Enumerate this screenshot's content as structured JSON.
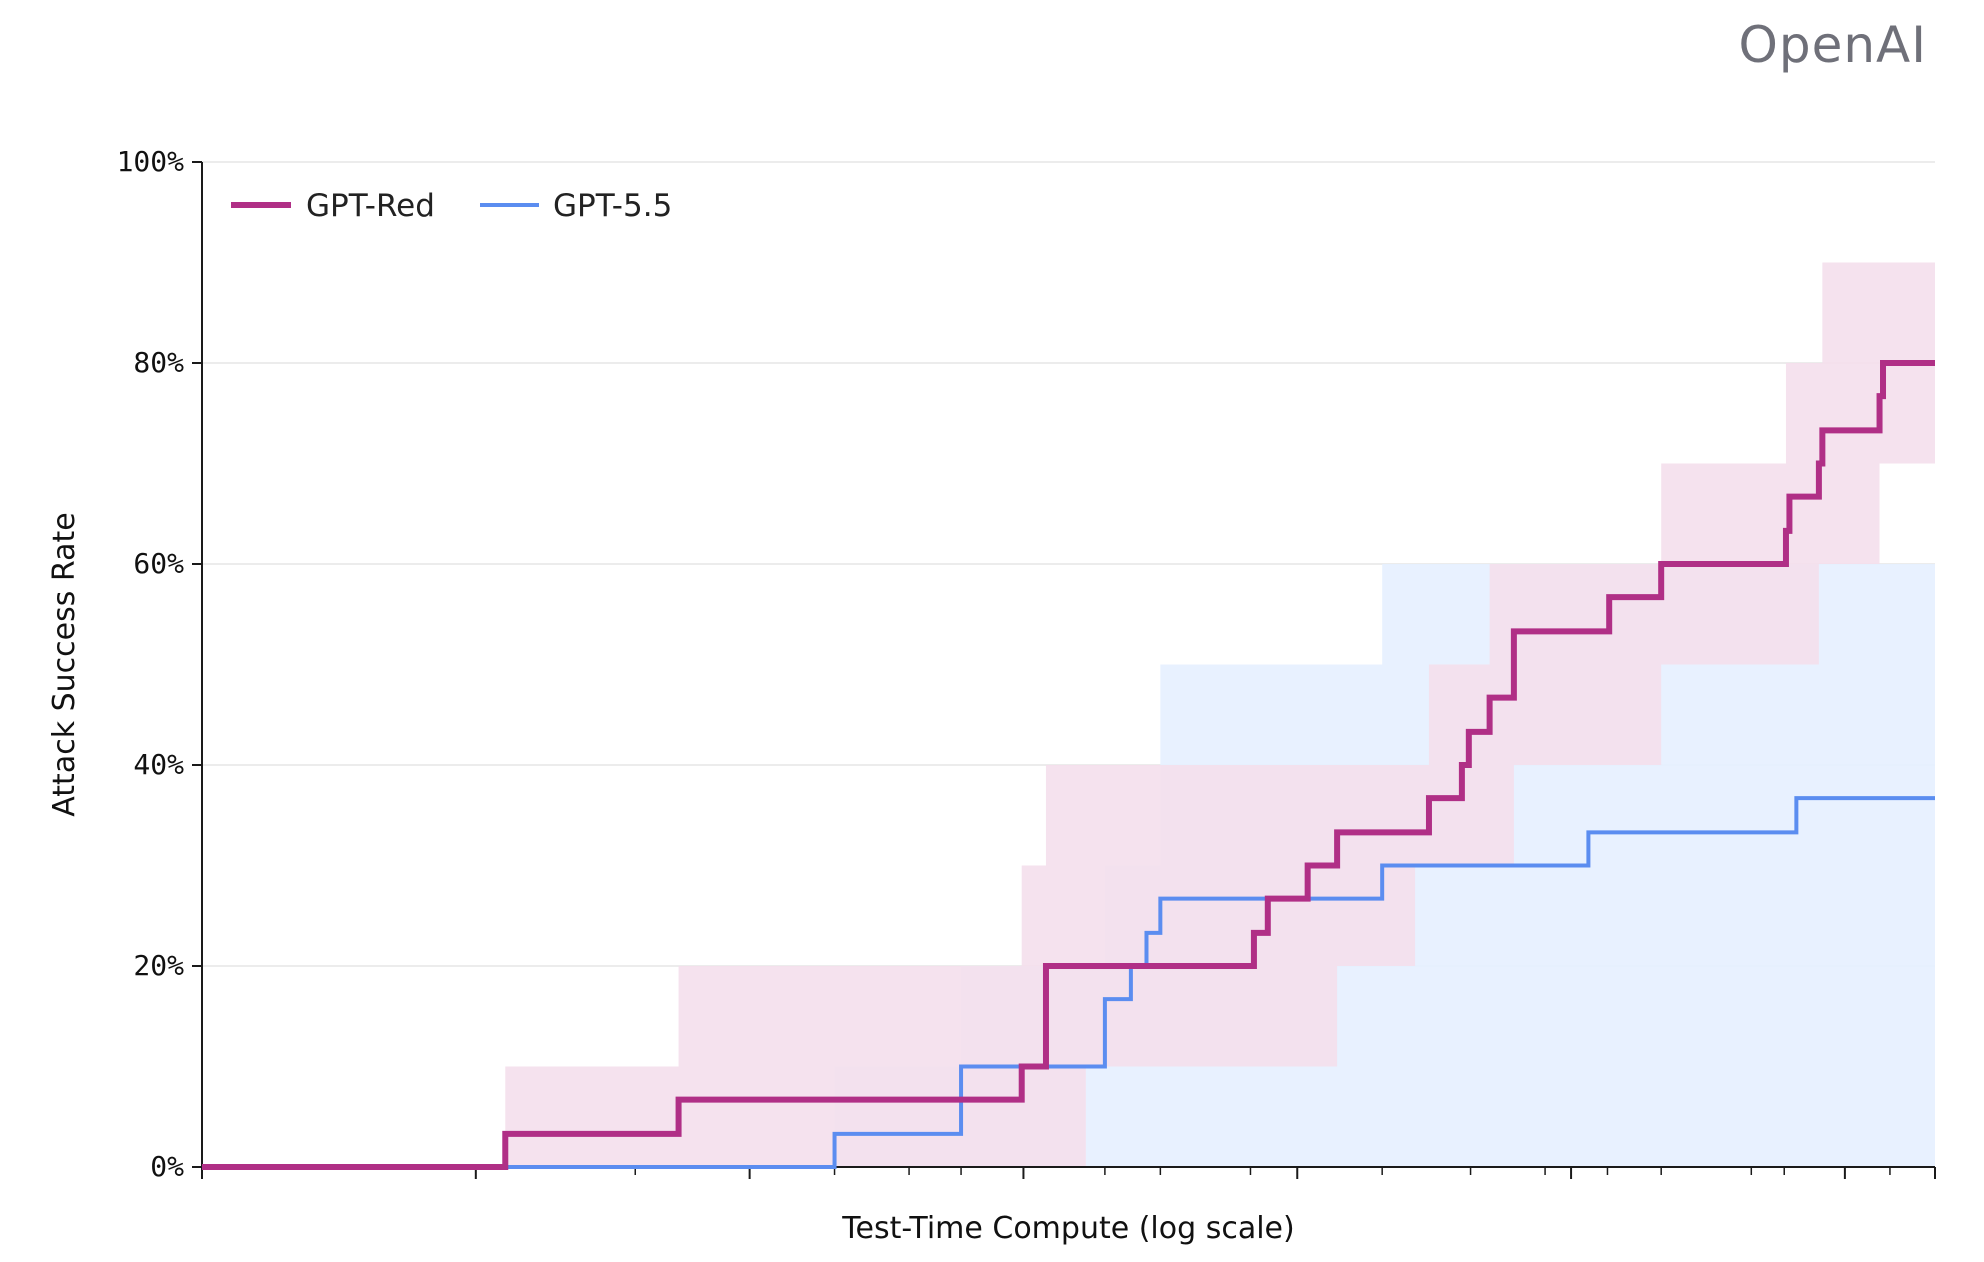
{
  "brand": {
    "name": "OpenAI"
  },
  "chart_data": {
    "type": "line",
    "title": "",
    "xlabel": "Test-Time Compute (log scale)",
    "ylabel": "Attack Success Rate",
    "xscale": "log",
    "xlim": [
      0,
      1
    ],
    "ylim": [
      0,
      100
    ],
    "yticks": [
      "0%",
      "20%",
      "40%",
      "60%",
      "80%",
      "100%"
    ],
    "xticks_labeled": false,
    "grid": "horizontal",
    "legend": {
      "position": "top-left",
      "entries": [
        "GPT-Red",
        "GPT-5.5"
      ]
    },
    "series": [
      {
        "name": "GPT-Red",
        "color": "#b02f86",
        "band_color": "#f4dfec",
        "line_width": 6,
        "points": [
          [
            0.0,
            0.0
          ],
          [
            0.175,
            3.3
          ],
          [
            0.275,
            6.7
          ],
          [
            0.473,
            10.0
          ],
          [
            0.487,
            20.0
          ],
          [
            0.607,
            23.3
          ],
          [
            0.615,
            26.7
          ],
          [
            0.638,
            30.0
          ],
          [
            0.655,
            33.3
          ],
          [
            0.708,
            36.7
          ],
          [
            0.727,
            40.0
          ],
          [
            0.731,
            43.3
          ],
          [
            0.743,
            46.7
          ],
          [
            0.757,
            53.3
          ],
          [
            0.812,
            56.7
          ],
          [
            0.842,
            60.0
          ],
          [
            0.914,
            63.3
          ],
          [
            0.916,
            66.7
          ],
          [
            0.933,
            70.0
          ],
          [
            0.935,
            73.3
          ],
          [
            0.968,
            76.7
          ],
          [
            0.97,
            80.0
          ],
          [
            1.0,
            80.0
          ]
        ],
        "ci": [
          [
            0.0,
            0,
            0
          ],
          [
            0.175,
            0,
            10
          ],
          [
            0.275,
            0,
            20
          ],
          [
            0.438,
            0,
            20
          ],
          [
            0.473,
            0,
            30
          ],
          [
            0.487,
            0,
            40
          ],
          [
            0.51,
            10,
            40
          ],
          [
            0.54,
            10,
            40
          ],
          [
            0.613,
            10,
            40
          ],
          [
            0.655,
            20,
            40
          ],
          [
            0.7,
            30,
            40
          ],
          [
            0.708,
            30,
            50
          ],
          [
            0.743,
            30,
            60
          ],
          [
            0.757,
            40,
            60
          ],
          [
            0.842,
            50,
            60
          ],
          [
            0.842,
            50,
            70
          ],
          [
            0.914,
            50,
            80
          ],
          [
            0.933,
            60,
            80
          ],
          [
            0.935,
            60,
            90
          ],
          [
            0.968,
            70,
            90
          ],
          [
            1.0,
            70,
            90
          ]
        ]
      },
      {
        "name": "GPT-5.5",
        "color": "#5b8df0",
        "band_color": "#e6efff",
        "line_width": 4,
        "points": [
          [
            0.0,
            0.0
          ],
          [
            0.365,
            3.3
          ],
          [
            0.438,
            10.0
          ],
          [
            0.521,
            16.7
          ],
          [
            0.536,
            20.0
          ],
          [
            0.545,
            23.3
          ],
          [
            0.553,
            26.7
          ],
          [
            0.681,
            30.0
          ],
          [
            0.8,
            33.3
          ],
          [
            0.92,
            36.7
          ],
          [
            1.0,
            36.7
          ]
        ],
        "ci": [
          [
            0.0,
            0,
            0
          ],
          [
            0.365,
            0,
            10
          ],
          [
            0.438,
            0,
            20
          ],
          [
            0.521,
            0,
            30
          ],
          [
            0.553,
            0,
            50
          ],
          [
            0.681,
            0,
            60
          ],
          [
            0.8,
            0,
            60
          ],
          [
            1.0,
            0,
            60
          ]
        ]
      }
    ]
  }
}
